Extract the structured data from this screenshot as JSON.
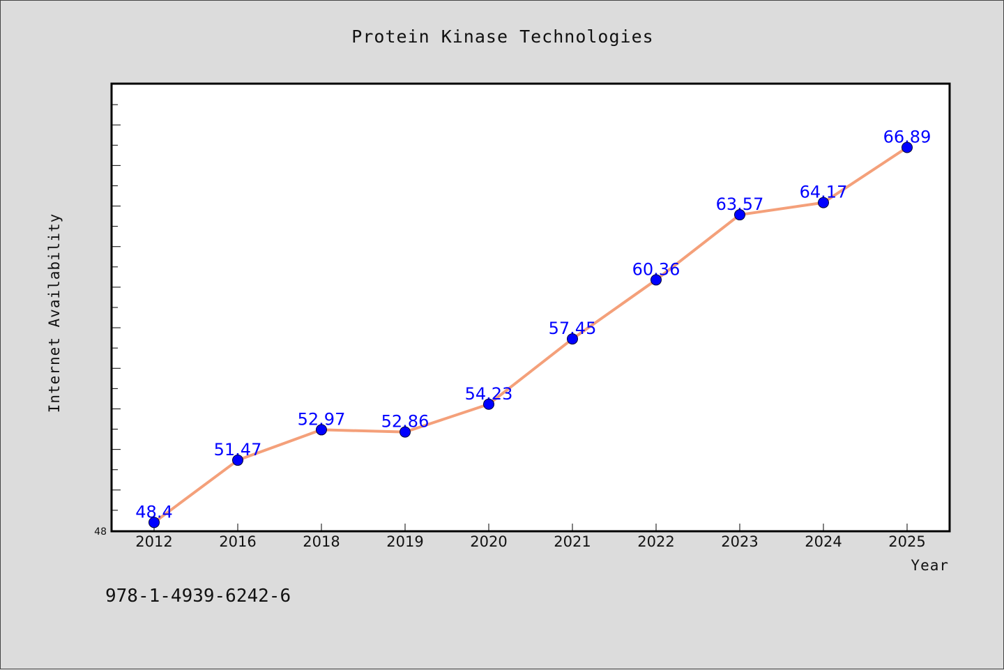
{
  "chart_data": {
    "type": "line",
    "title": "Protein Kinase Technologies",
    "xlabel": "Year",
    "ylabel": "Internet Availability",
    "categories": [
      "2012",
      "2016",
      "2018",
      "2019",
      "2020",
      "2021",
      "2022",
      "2023",
      "2024",
      "2025"
    ],
    "series": [
      {
        "values": [
          48.4,
          51.47,
          52.97,
          52.86,
          54.23,
          57.45,
          60.36,
          63.57,
          64.17,
          66.89
        ],
        "labels": [
          "48.4",
          "51.47",
          "52.97",
          "52.86",
          "54.23",
          "57.45",
          "60.36",
          "63.57",
          "64.17",
          "66.89"
        ],
        "line_color": "#f4a07a",
        "marker_color": "#0000ff"
      }
    ],
    "ylim": [
      48,
      70
    ],
    "y_min_label": "48",
    "grid": false,
    "colors": {
      "background": "#dcdcdc",
      "plot_background": "#ffffff",
      "label_color": "#0000ff"
    }
  },
  "footer": {
    "isbn": "978-1-4939-6242-6"
  }
}
